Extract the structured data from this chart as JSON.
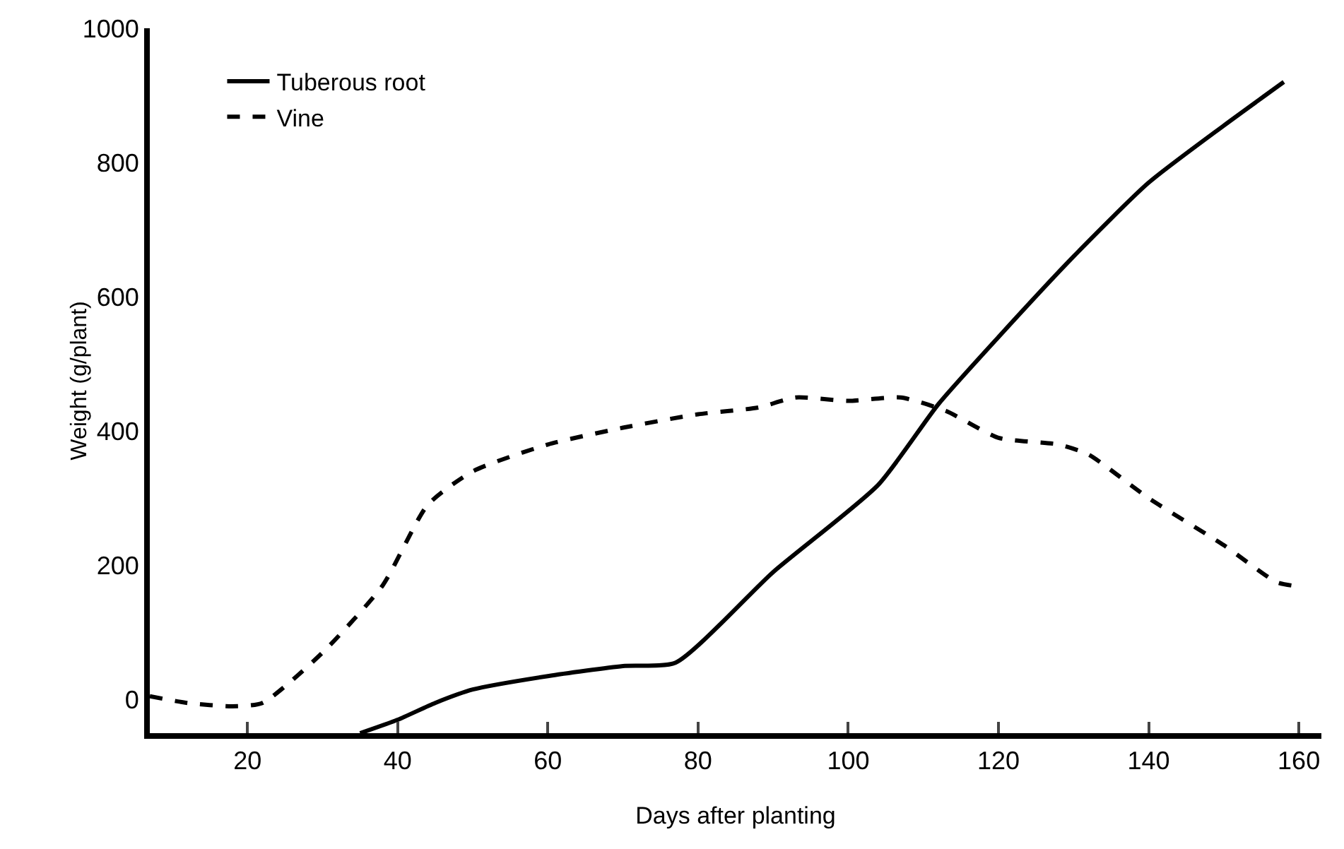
{
  "chart_data": {
    "type": "line",
    "xlabel": "Days after planting",
    "ylabel": "Weight (g/plant)",
    "xlim": [
      7,
      163
    ],
    "ylim": [
      -50,
      1000
    ],
    "xticks": [
      20,
      40,
      60,
      80,
      100,
      120,
      140,
      160
    ],
    "yticks": [
      0,
      200,
      400,
      600,
      800,
      1000
    ],
    "grid": false,
    "legend": "top left",
    "marker": "none",
    "series": [
      {
        "name": "Tuberous root",
        "color": "#000000",
        "line_style": "solid",
        "x": [
          35,
          40,
          45,
          50,
          60,
          70,
          77,
          90,
          104,
          112,
          120,
          130,
          140,
          150,
          158
        ],
        "values": [
          -50,
          -30,
          -5,
          15,
          35,
          50,
          55,
          190,
          320,
          440,
          540,
          660,
          770,
          855,
          920
        ]
      },
      {
        "name": "Vine",
        "color": "#000000",
        "line_style": "dashed",
        "x": [
          7,
          12,
          18,
          22,
          30,
          38,
          44,
          50,
          60,
          70,
          80,
          88,
          93,
          100,
          107,
          113,
          120,
          128,
          132,
          140,
          150,
          157,
          159
        ],
        "values": [
          5,
          -5,
          -10,
          -5,
          70,
          170,
          290,
          340,
          380,
          405,
          425,
          435,
          450,
          445,
          450,
          430,
          390,
          380,
          365,
          300,
          230,
          175,
          170
        ]
      }
    ]
  }
}
